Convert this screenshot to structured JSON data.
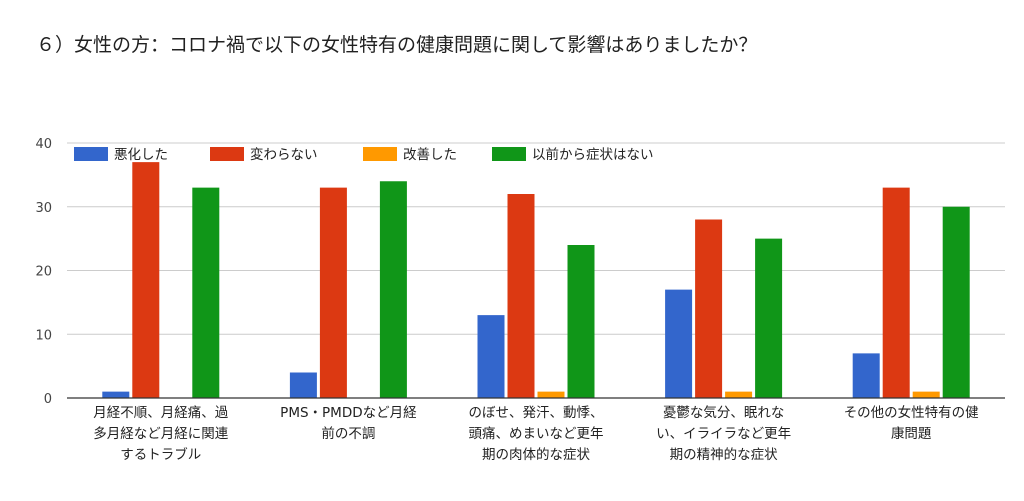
{
  "title": "６）女性の方：コロナ禍で以下の女性特有の健康問題に関して影響はありましたか？",
  "chart_data": {
    "type": "bar",
    "title": "６）女性の方：コロナ禍で以下の女性特有の健康問題に関して影響はありましたか？",
    "ylim": [
      0,
      40
    ],
    "yticks": [
      0,
      10,
      20,
      30,
      40
    ],
    "grid": true,
    "legend_position": "top-left",
    "categories": [
      [
        "月経不順、月経痛、過",
        "多月経など月経に関連",
        "するトラブル"
      ],
      [
        "PMS・PMDDなど月経",
        "前の不調"
      ],
      [
        "のぼせ、発汗、動悸、",
        "頭痛、めまいなど更年",
        "期の肉体的な症状"
      ],
      [
        "憂鬱な気分、眠れな",
        "い、イライラなど更年",
        "期の精神的な症状"
      ],
      [
        "その他の女性特有の健",
        "康問題"
      ]
    ],
    "series": [
      {
        "name": "悪化した",
        "color": "#3366cc",
        "values": [
          1,
          4,
          13,
          17,
          7
        ]
      },
      {
        "name": "変わらない",
        "color": "#dc3912",
        "values": [
          37,
          33,
          32,
          28,
          33
        ]
      },
      {
        "name": "改善した",
        "color": "#ff9900",
        "values": [
          0,
          0,
          1,
          1,
          1
        ]
      },
      {
        "name": "以前から症状はない",
        "color": "#109618",
        "values": [
          33,
          34,
          24,
          25,
          30
        ]
      }
    ]
  }
}
